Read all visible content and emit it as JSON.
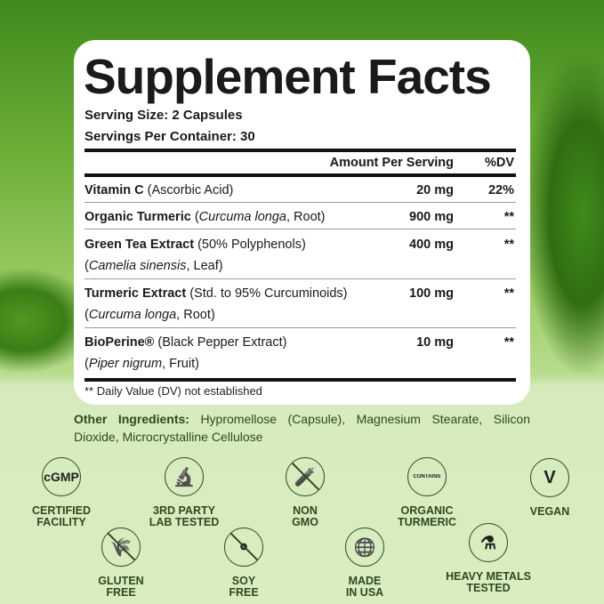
{
  "facts": {
    "title": "Supplement Facts",
    "serving_size": "Serving Size: 2 Capsules",
    "servings_per_container": "Servings Per Container: 30",
    "header": {
      "amount": "Amount Per Serving",
      "dv": "%DV"
    },
    "rows": [
      {
        "name": "Vitamin C",
        "detail": " (Ascorbic Acid)",
        "line2": "",
        "amount": "20 mg",
        "dv": "22%"
      },
      {
        "name": "Organic Turmeric",
        "detail": " (Curcuma longa, Root)",
        "line2": "",
        "amount": "900 mg",
        "dv": "**"
      },
      {
        "name": "Green Tea Extract",
        "detail": " (50% Polyphenols)",
        "line2": "(Camelia sinensis, Leaf)",
        "amount": "400 mg",
        "dv": "**"
      },
      {
        "name": "Turmeric Extract",
        "detail": " (Std. to 95% Curcuminoids)",
        "line2": "(Curcuma longa, Root)",
        "amount": "100 mg",
        "dv": "**"
      },
      {
        "name": "BioPerine®",
        "detail": " (Black Pepper Extract)",
        "line2": "(Piper nigrum, Fruit)",
        "amount": "10 mg",
        "dv": "**"
      }
    ],
    "footnote": "** Daily Value (DV) not established"
  },
  "other_ingredients": {
    "label": "Other Ingredients:",
    "text": " Hypromellose (Capsule), Magnesium Stearate, Silicon Dioxide, Microcrystalline Cellulose"
  },
  "badges": [
    {
      "icon": "cgmp-icon",
      "glyph": "cGMP",
      "l1": "CERTIFIED",
      "l2": "FACILITY"
    },
    {
      "icon": "microscope-icon",
      "glyph": "🔬",
      "l1": "3RD PARTY",
      "l2": "LAB TESTED"
    },
    {
      "icon": "non-gmo-icon",
      "glyph": "🧪",
      "l1": "NON",
      "l2": "GMO"
    },
    {
      "icon": "organic-turmeric-icon",
      "glyph": "CONTAINS",
      "l1": "ORGANIC",
      "l2": "TURMERIC"
    },
    {
      "icon": "vegan-leaf-icon",
      "glyph": "V",
      "l1": "VEGAN",
      "l2": ""
    },
    {
      "icon": "gluten-free-icon",
      "glyph": "🌾",
      "l1": "GLUTEN",
      "l2": "FREE"
    },
    {
      "icon": "soy-free-icon",
      "glyph": "⚬",
      "l1": "SOY",
      "l2": "FREE"
    },
    {
      "icon": "usa-globe-icon",
      "glyph": "🌐",
      "l1": "MADE",
      "l2": "IN USA"
    },
    {
      "icon": "flask-check-icon",
      "glyph": "⚗",
      "l1": "HEAVY METALS",
      "l2": "TESTED"
    }
  ],
  "colors": {
    "icon_green": "#2d4a1c",
    "panel": "#ffffff",
    "bottom_bg": "#d9edc1"
  }
}
